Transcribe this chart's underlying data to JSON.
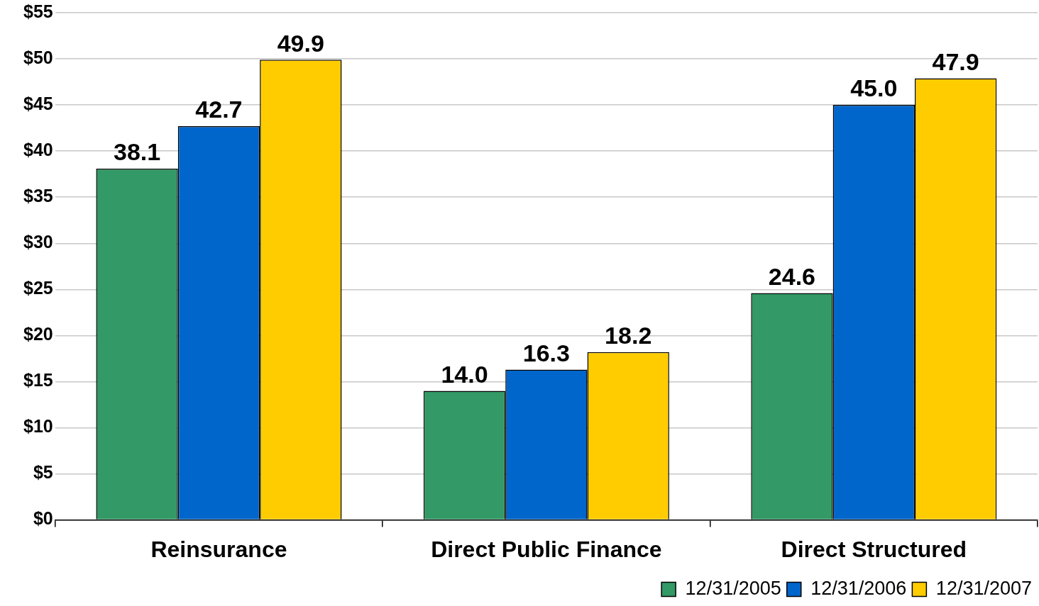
{
  "chart_data": {
    "type": "bar",
    "categories": [
      "Reinsurance",
      "Direct Public Finance",
      "Direct Structured"
    ],
    "series": [
      {
        "name": "12/31/2005",
        "color": "#339966",
        "values": [
          38.1,
          14.0,
          24.6
        ],
        "value_labels": [
          "38.1",
          "14.0",
          "24.6"
        ]
      },
      {
        "name": "12/31/2006",
        "color": "#0066cc",
        "values": [
          42.7,
          16.3,
          45.0
        ],
        "value_labels": [
          "42.7",
          "16.3",
          "45.0"
        ]
      },
      {
        "name": "12/31/2007",
        "color": "#ffcc00",
        "values": [
          49.9,
          18.2,
          47.9
        ],
        "value_labels": [
          "49.9",
          "18.2",
          "47.9"
        ]
      }
    ],
    "ylim": [
      0,
      55
    ],
    "yticks": [
      {
        "value": 0,
        "label": "$0"
      },
      {
        "value": 5,
        "label": "$5"
      },
      {
        "value": 10,
        "label": "$10"
      },
      {
        "value": 15,
        "label": "$15"
      },
      {
        "value": 20,
        "label": "$20"
      },
      {
        "value": 25,
        "label": "$25"
      },
      {
        "value": 30,
        "label": "$30"
      },
      {
        "value": 35,
        "label": "$35"
      },
      {
        "value": 40,
        "label": "$40"
      },
      {
        "value": 45,
        "label": "$45"
      },
      {
        "value": 50,
        "label": "$50"
      },
      {
        "value": 55,
        "label": "$55"
      }
    ],
    "grid": "y",
    "legend": "bottom right"
  }
}
